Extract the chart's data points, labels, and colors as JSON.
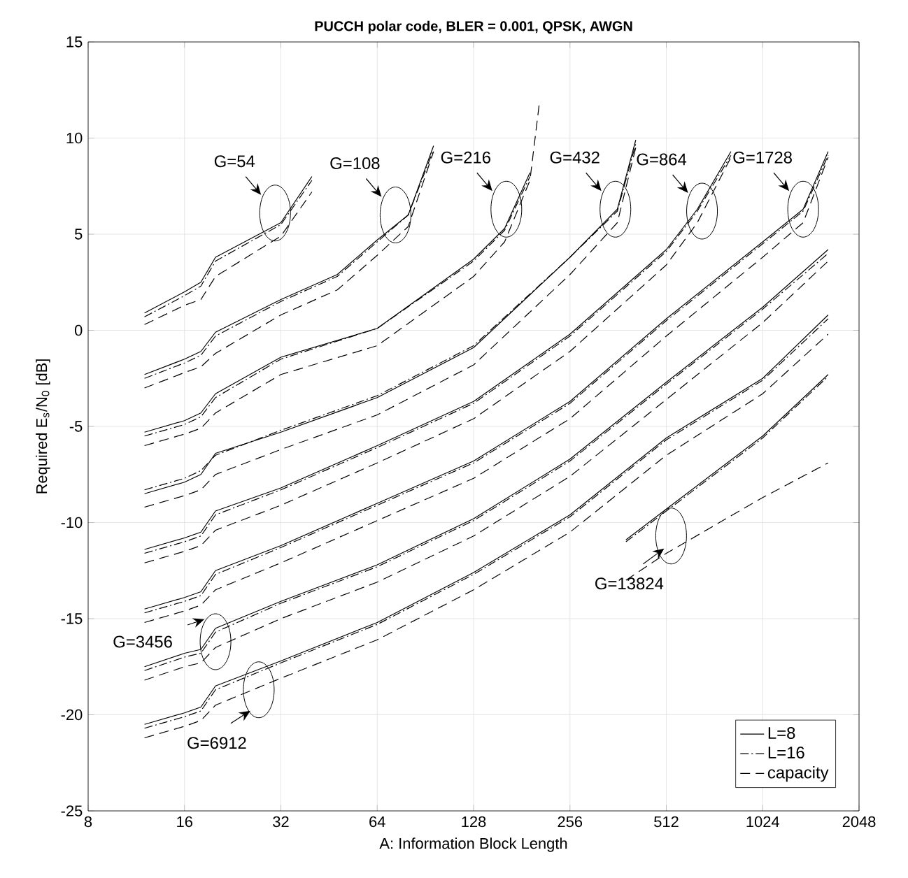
{
  "chart_data": {
    "type": "line",
    "title": "PUCCH polar code, BLER = 0.001, QPSK, AWGN",
    "xlabel": "A: Information Block Length",
    "ylabel": "Required E$_{s}$/N$_{0}$ [dB]",
    "log": "x",
    "xlim": [
      8,
      2048
    ],
    "xticks": [
      8,
      16,
      32,
      64,
      128,
      256,
      512,
      1024,
      2048
    ],
    "ylim": [
      -25,
      15
    ],
    "yticks": [
      -25,
      -20,
      -15,
      -10,
      -5,
      0,
      5,
      10,
      15
    ],
    "grid": true,
    "legend": "bottom right",
    "series": [
      {
        "name": "L=8",
        "color": "#000000",
        "line_style": "solid",
        "x": [
          12,
          16,
          18,
          20,
          32,
          40
        ],
        "values": [
          0.9,
          2.0,
          2.5,
          3.8,
          5.6,
          8.0
        ]
      },
      {
        "name": "L=16",
        "color": "#000000",
        "line_style": "dashdot",
        "x": [
          12,
          16,
          18,
          20,
          32,
          40
        ],
        "values": [
          0.7,
          1.8,
          2.3,
          3.6,
          5.5,
          7.8
        ]
      },
      {
        "name": "capacity",
        "color": "#000000",
        "line_style": "dashed",
        "x": [
          12,
          16,
          18,
          20,
          32,
          40
        ],
        "values": [
          0.3,
          1.3,
          1.6,
          2.8,
          4.9,
          7.2
        ]
      },
      {
        "color": "#000000",
        "line_style": "solid",
        "x": [
          12,
          16,
          18,
          20,
          32,
          48,
          64,
          80,
          96
        ],
        "values": [
          -2.3,
          -1.5,
          -1.1,
          -0.1,
          1.6,
          2.9,
          4.7,
          6.0,
          9.6
        ]
      },
      {
        "color": "#000000",
        "line_style": "dashdot",
        "x": [
          12,
          16,
          18,
          20,
          32,
          48,
          64,
          80,
          96
        ],
        "values": [
          -2.5,
          -1.7,
          -1.3,
          -0.3,
          1.5,
          2.8,
          4.6,
          6.0,
          9.4
        ]
      },
      {
        "color": "#000000",
        "line_style": "dashed",
        "x": [
          12,
          16,
          18,
          20,
          32,
          48,
          64,
          80,
          96
        ],
        "values": [
          -3.0,
          -2.2,
          -1.9,
          -1.2,
          0.8,
          2.1,
          3.9,
          5.4,
          9.3
        ]
      },
      {
        "color": "#000000",
        "line_style": "solid",
        "x": [
          12,
          16,
          18,
          20,
          32,
          64,
          128,
          160,
          192
        ],
        "values": [
          -5.3,
          -4.7,
          -4.3,
          -3.3,
          -1.4,
          0.1,
          3.7,
          5.3,
          8.2
        ]
      },
      {
        "color": "#000000",
        "line_style": "dashdot",
        "x": [
          12,
          16,
          18,
          20,
          32,
          64,
          128,
          160,
          192
        ],
        "values": [
          -5.5,
          -4.9,
          -4.5,
          -3.5,
          -1.5,
          0.1,
          3.6,
          5.2,
          8.0
        ]
      },
      {
        "color": "#000000",
        "line_style": "dashed",
        "x": [
          12,
          16,
          18,
          20,
          32,
          64,
          128,
          160,
          192,
          205
        ],
        "values": [
          -6.0,
          -5.4,
          -5.1,
          -4.3,
          -2.3,
          -0.8,
          2.8,
          4.6,
          7.8,
          11.7
        ]
      },
      {
        "color": "#000000",
        "line_style": "solid",
        "x": [
          12,
          16,
          18,
          20,
          32,
          64,
          128,
          256,
          360,
          411
        ],
        "values": [
          -8.5,
          -7.9,
          -7.5,
          -6.4,
          -5.3,
          -3.5,
          -0.9,
          3.8,
          6.3,
          9.9
        ]
      },
      {
        "color": "#000000",
        "line_style": "dashdot",
        "x": [
          12,
          16,
          18,
          20,
          32,
          64,
          128,
          256,
          360,
          411
        ],
        "values": [
          -8.3,
          -7.7,
          -7.3,
          -6.5,
          -5.2,
          -3.4,
          -0.8,
          3.8,
          6.2,
          9.7
        ]
      },
      {
        "color": "#000000",
        "line_style": "dashed",
        "x": [
          12,
          16,
          18,
          20,
          32,
          64,
          128,
          256,
          360,
          411
        ],
        "values": [
          -9.2,
          -8.6,
          -8.3,
          -7.5,
          -6.2,
          -4.4,
          -1.8,
          2.9,
          5.6,
          9.5
        ]
      },
      {
        "color": "#000000",
        "line_style": "solid",
        "x": [
          12,
          16,
          18,
          20,
          32,
          64,
          128,
          256,
          512,
          640,
          815
        ],
        "values": [
          -11.4,
          -10.8,
          -10.5,
          -9.4,
          -8.2,
          -6.0,
          -3.7,
          -0.2,
          4.2,
          6.3,
          9.3
        ]
      },
      {
        "color": "#000000",
        "line_style": "dashdot",
        "x": [
          12,
          16,
          18,
          20,
          32,
          64,
          128,
          256,
          512,
          640,
          815
        ],
        "values": [
          -11.6,
          -11.0,
          -10.7,
          -9.6,
          -8.3,
          -6.1,
          -3.8,
          -0.3,
          4.1,
          6.2,
          9.1
        ]
      },
      {
        "color": "#000000",
        "line_style": "dashed",
        "x": [
          12,
          16,
          18,
          20,
          32,
          64,
          128,
          256,
          512,
          640,
          815
        ],
        "values": [
          -12.1,
          -11.5,
          -11.2,
          -10.4,
          -9.1,
          -6.9,
          -4.6,
          -1.1,
          3.4,
          5.6,
          9.0
        ]
      },
      {
        "color": "#000000",
        "line_style": "solid",
        "x": [
          12,
          16,
          18,
          20,
          32,
          64,
          128,
          256,
          512,
          1024,
          1370,
          1640
        ],
        "values": [
          -14.5,
          -13.9,
          -13.6,
          -12.5,
          -11.2,
          -9.0,
          -6.8,
          -3.7,
          0.6,
          4.6,
          6.3,
          9.3
        ]
      },
      {
        "color": "#000000",
        "line_style": "dashdot",
        "x": [
          12,
          16,
          18,
          20,
          32,
          64,
          128,
          256,
          512,
          1024,
          1370,
          1640
        ],
        "values": [
          -14.7,
          -14.1,
          -13.8,
          -12.7,
          -11.3,
          -9.1,
          -6.9,
          -3.8,
          0.5,
          4.5,
          6.2,
          9.1
        ]
      },
      {
        "color": "#000000",
        "line_style": "dashed",
        "x": [
          12,
          16,
          18,
          20,
          32,
          64,
          128,
          256,
          512,
          1024,
          1370,
          1640
        ],
        "values": [
          -15.2,
          -14.6,
          -14.3,
          -13.5,
          -12.1,
          -9.9,
          -7.7,
          -4.6,
          -0.3,
          3.8,
          5.6,
          9.0
        ]
      },
      {
        "color": "#000000",
        "line_style": "solid",
        "x": [
          12,
          16,
          18,
          20,
          32,
          64,
          128,
          256,
          512,
          1024,
          1640
        ],
        "values": [
          -17.5,
          -16.8,
          -16.6,
          -15.5,
          -14.1,
          -12.2,
          -9.8,
          -6.7,
          -2.7,
          1.2,
          4.2
        ]
      },
      {
        "color": "#000000",
        "line_style": "dashdot",
        "x": [
          12,
          16,
          18,
          20,
          32,
          64,
          128,
          256,
          512,
          1024,
          1640
        ],
        "values": [
          -17.7,
          -17.0,
          -16.8,
          -15.7,
          -14.2,
          -12.3,
          -9.9,
          -6.8,
          -2.8,
          1.1,
          4.0
        ]
      },
      {
        "color": "#000000",
        "line_style": "dashed",
        "x": [
          12,
          16,
          18,
          20,
          32,
          64,
          128,
          256,
          512,
          1024,
          1640
        ],
        "values": [
          -18.2,
          -17.5,
          -17.3,
          -16.5,
          -15.0,
          -13.1,
          -10.7,
          -7.6,
          -3.6,
          0.4,
          3.6
        ]
      },
      {
        "color": "#000000",
        "line_style": "solid",
        "x": [
          12,
          16,
          18,
          20,
          32,
          64,
          128,
          256,
          512,
          1024,
          1640
        ],
        "values": [
          -20.5,
          -19.9,
          -19.6,
          -18.5,
          -17.2,
          -15.2,
          -12.6,
          -9.6,
          -5.6,
          -2.5,
          0.8
        ]
      },
      {
        "color": "#000000",
        "line_style": "dashdot",
        "x": [
          12,
          16,
          18,
          20,
          32,
          64,
          128,
          256,
          512,
          1024,
          1640
        ],
        "values": [
          -20.7,
          -20.1,
          -19.8,
          -18.7,
          -17.3,
          -15.3,
          -12.7,
          -9.7,
          -5.7,
          -2.6,
          0.6
        ]
      },
      {
        "color": "#000000",
        "line_style": "dashed",
        "x": [
          12,
          16,
          18,
          20,
          32,
          64,
          128,
          256,
          512,
          1024,
          1640
        ],
        "values": [
          -21.2,
          -20.6,
          -20.3,
          -19.5,
          -18.1,
          -16.1,
          -13.5,
          -10.5,
          -6.5,
          -3.3,
          -0.2
        ]
      },
      {
        "color": "#000000",
        "line_style": "solid",
        "x": [
          383,
          512,
          1024,
          1640
        ],
        "values": [
          -10.9,
          -9.3,
          -5.5,
          -2.3
        ]
      },
      {
        "color": "#000000",
        "line_style": "dashdot",
        "x": [
          383,
          512,
          1024,
          1640
        ],
        "values": [
          -11.0,
          -9.4,
          -5.6,
          -2.4
        ]
      },
      {
        "color": "#000000",
        "line_style": "dashed",
        "x": [
          383,
          512,
          1024,
          1640
        ],
        "values": [
          -13.0,
          -11.6,
          -8.7,
          -6.9
        ]
      }
    ],
    "annotations": [
      {
        "text": "G=54",
        "x": 30.7,
        "y": 6.1
      },
      {
        "text": "G=108",
        "x": 73,
        "y": 6.0
      },
      {
        "text": "G=216",
        "x": 162,
        "y": 6.3
      },
      {
        "text": "G=432",
        "x": 355,
        "y": 6.3
      },
      {
        "text": "G=864",
        "x": 662,
        "y": 6.2
      },
      {
        "text": "G=1728",
        "x": 1370,
        "y": 6.3
      },
      {
        "text": "G=3456",
        "x": 20,
        "y": -16.2
      },
      {
        "text": "G=6912",
        "x": 27.3,
        "y": -18.7
      },
      {
        "text": "G=13824",
        "x": 530,
        "y": -10.7
      }
    ]
  }
}
